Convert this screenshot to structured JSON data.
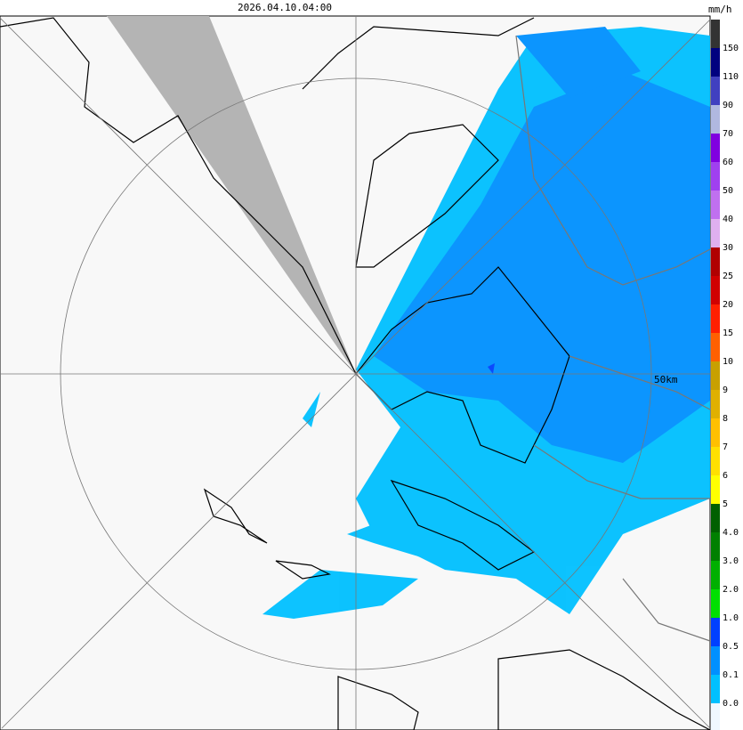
{
  "header": {
    "timestamp": "2026.04.10.04:00"
  },
  "map": {
    "range_label": "50km"
  },
  "legend": {
    "unit": "mm/h",
    "labels": [
      "150",
      "110",
      "90",
      "70",
      "60",
      "50",
      "40",
      "30",
      "25",
      "20",
      "15",
      "10",
      "9",
      "8",
      "7",
      "6",
      "5",
      "4.0",
      "3.0",
      "2.0",
      "1.0",
      "0.5",
      "0.1",
      "0.0"
    ],
    "colors": [
      "#333333",
      "#00007f",
      "#4040c0",
      "#b0b8e0",
      "#8000e0",
      "#a040f0",
      "#c070f0",
      "#e0b0f0",
      "#b00000",
      "#d00000",
      "#ff2000",
      "#ff6000",
      "#c8a000",
      "#e0b000",
      "#ffc000",
      "#ffe000",
      "#ffff00",
      "#006000",
      "#008000",
      "#00b000",
      "#00e000",
      "#0040ff",
      "#0090ff",
      "#00c0ff",
      "#f0f8ff"
    ]
  }
}
